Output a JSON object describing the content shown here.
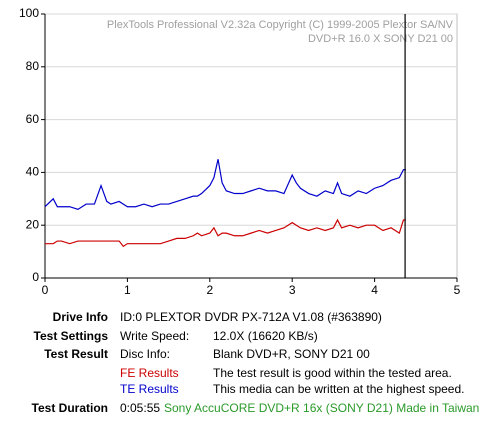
{
  "chart_data": {
    "type": "line",
    "annotations": [
      "PlexTools Professional V2.32a Copyright (C) 1999-2005 Plextor SA/NV",
      "DVD+R   16.0 X   SONY D21 00"
    ],
    "x": [
      0,
      0.1,
      0.15,
      0.2,
      0.3,
      0.4,
      0.5,
      0.6,
      0.68,
      0.75,
      0.8,
      0.9,
      0.95,
      1.0,
      1.1,
      1.2,
      1.3,
      1.4,
      1.5,
      1.6,
      1.7,
      1.8,
      1.85,
      1.9,
      2.0,
      2.05,
      2.1,
      2.15,
      2.2,
      2.3,
      2.4,
      2.5,
      2.6,
      2.7,
      2.8,
      2.9,
      3.0,
      3.05,
      3.1,
      3.2,
      3.3,
      3.4,
      3.5,
      3.55,
      3.6,
      3.7,
      3.8,
      3.9,
      4.0,
      4.1,
      4.2,
      4.3,
      4.35,
      4.38
    ],
    "series": [
      {
        "name": "FE Results",
        "color": "#cc0000",
        "values": [
          13,
          13,
          14,
          14,
          13,
          14,
          14,
          14,
          14,
          14,
          14,
          14,
          12,
          13,
          13,
          13,
          13,
          13,
          14,
          15,
          15,
          16,
          17,
          16,
          17,
          19,
          16,
          17,
          17,
          16,
          16,
          17,
          18,
          17,
          18,
          19,
          21,
          20,
          19,
          18,
          19,
          18,
          19,
          22,
          19,
          20,
          19,
          20,
          20,
          18,
          19,
          17,
          22,
          22
        ]
      },
      {
        "name": "TE Results",
        "color": "#0000cc",
        "values": [
          27,
          30,
          27,
          27,
          27,
          26,
          28,
          28,
          35,
          29,
          28,
          29,
          28,
          27,
          27,
          28,
          27,
          28,
          28,
          29,
          30,
          31,
          31,
          32,
          35,
          38,
          45,
          36,
          33,
          32,
          32,
          33,
          34,
          33,
          33,
          32,
          39,
          36,
          34,
          32,
          31,
          33,
          32,
          36,
          32,
          31,
          33,
          32,
          34,
          35,
          37,
          38,
          41,
          41
        ]
      }
    ],
    "marker_x": 4.37,
    "xlim": [
      0,
      5
    ],
    "xticks": [
      0,
      1,
      2,
      3,
      4,
      5
    ],
    "ylim": [
      0,
      100
    ],
    "yticks": [
      0,
      20,
      40,
      60,
      80,
      100
    ],
    "grid": true
  },
  "info": {
    "drive_info": {
      "label": "Drive Info",
      "value": "ID:0 PLEXTOR DVDR PX-712A V1.08 (#363890)"
    },
    "test_settings": {
      "label": "Test Settings",
      "key": "Write Speed:",
      "value": "12.0X (16620 KB/s)"
    },
    "test_result": {
      "label": "Test Result",
      "key": "Disc Info:",
      "value": "Blank DVD+R, SONY D21 00"
    },
    "fe_result": "The test result is good within the tested area.",
    "te_result": "This media can be written at the highest speed.",
    "test_duration": {
      "label": "Test Duration",
      "value": "0:05:55",
      "media": "Sony AccuCORE DVD+R 16x (SONY D21) Made in Taiwan"
    }
  }
}
